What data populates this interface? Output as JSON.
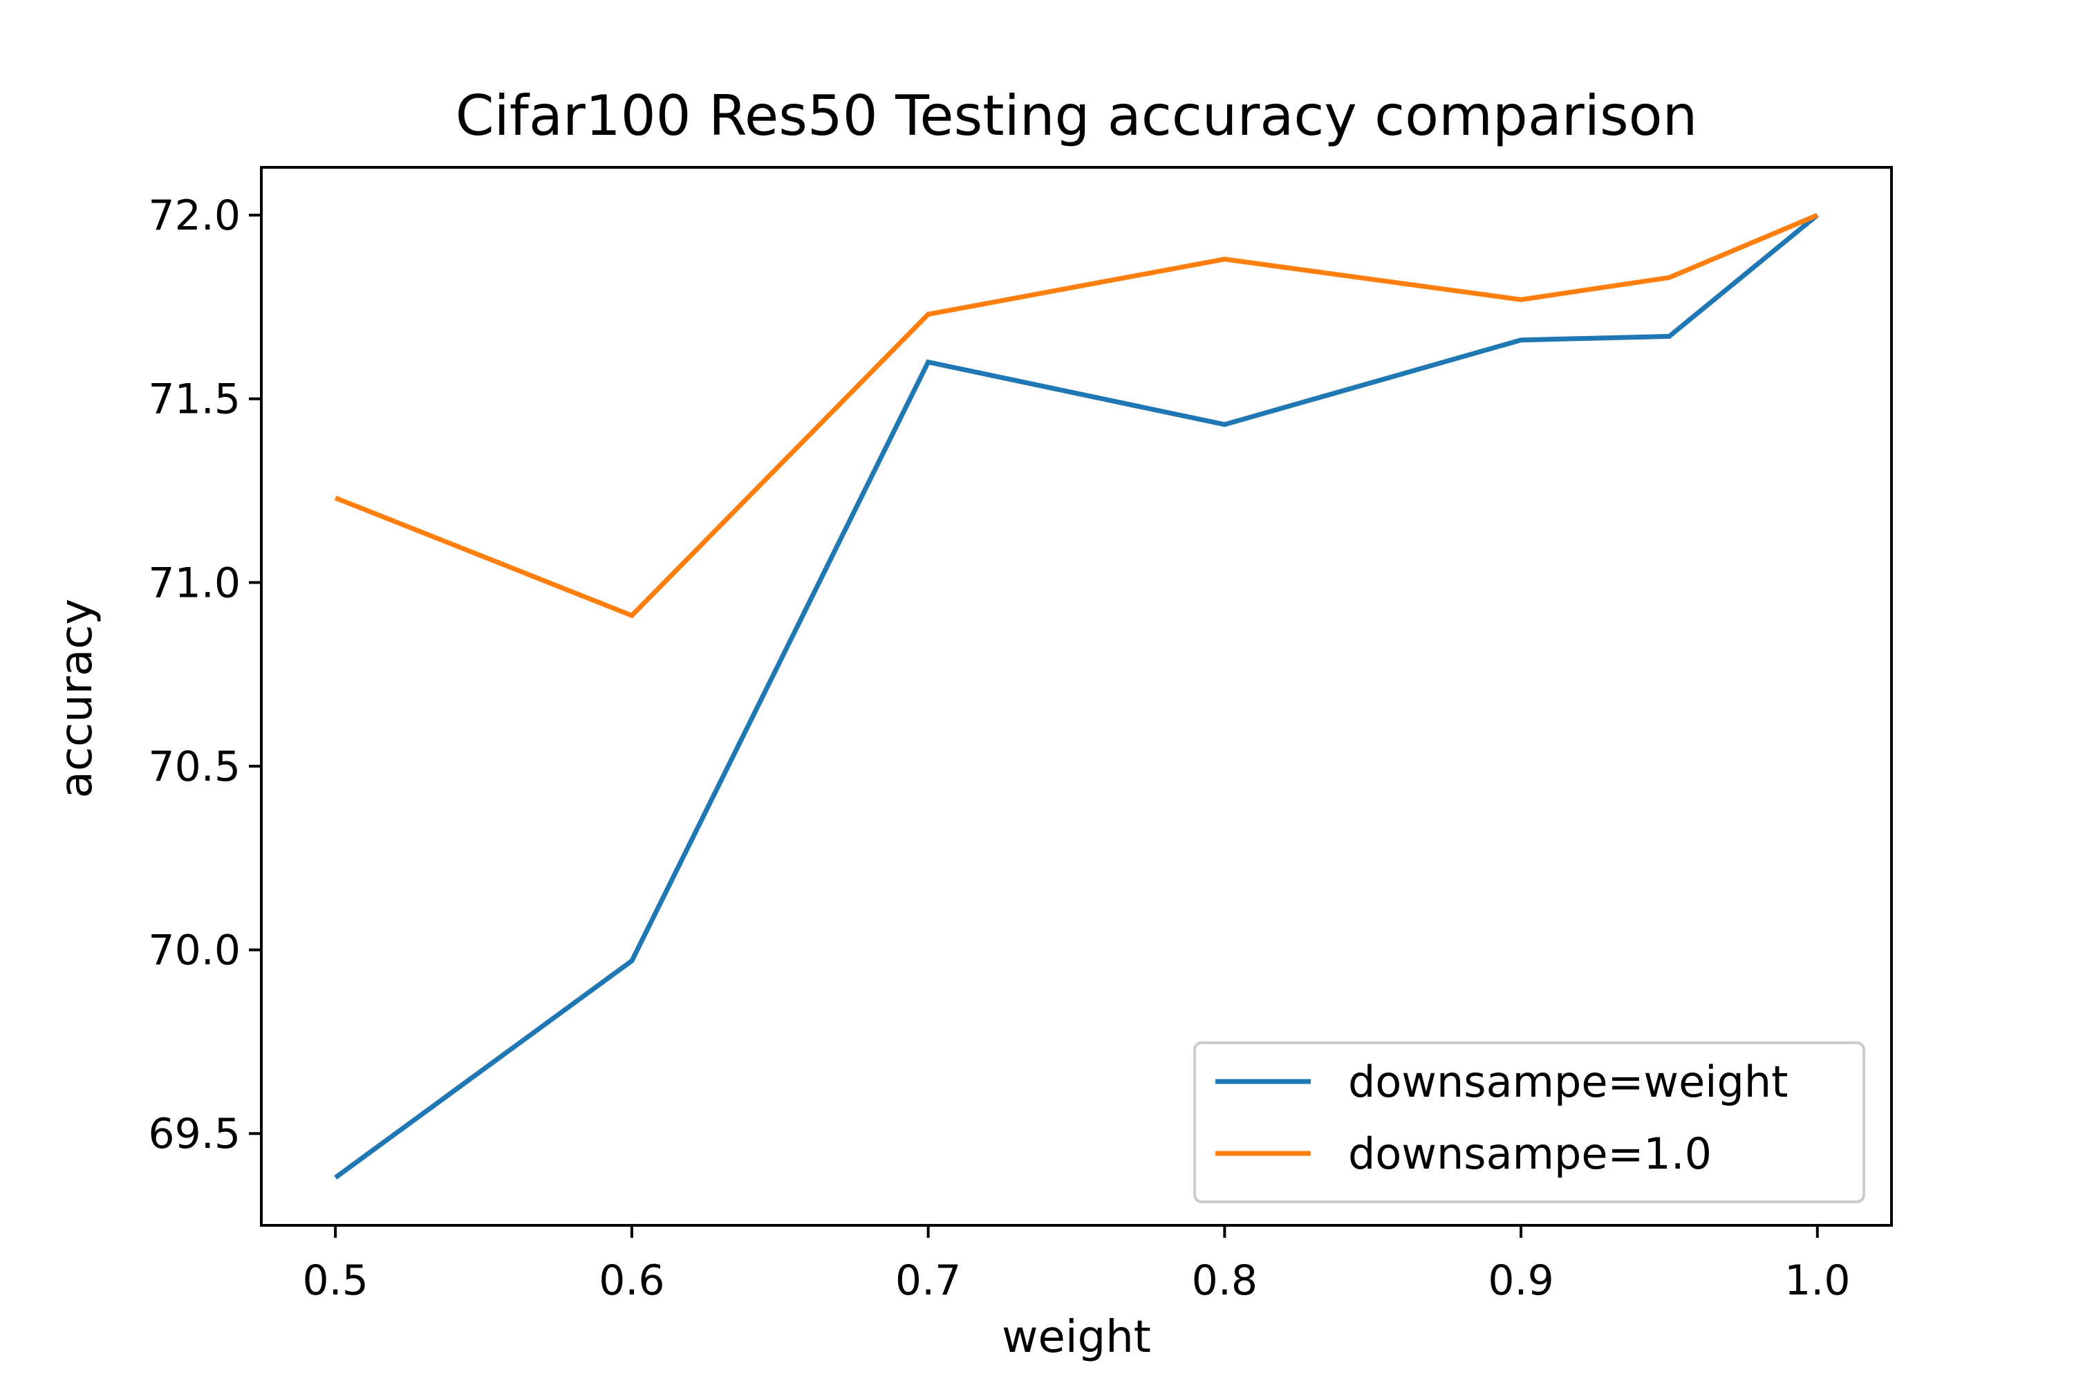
{
  "chart_data": {
    "type": "line",
    "title": "Cifar100 Res50 Testing accuracy comparison",
    "xlabel": "weight",
    "ylabel": "accuracy",
    "xlim": [
      0.475,
      1.025
    ],
    "ylim": [
      69.25,
      72.13
    ],
    "xticks": [
      0.5,
      0.6,
      0.7,
      0.8,
      0.9,
      1.0
    ],
    "xtick_labels": [
      "0.5",
      "0.6",
      "0.7",
      "0.8",
      "0.9",
      "1.0"
    ],
    "yticks": [
      69.5,
      70.0,
      70.5,
      71.0,
      71.5,
      72.0
    ],
    "ytick_labels": [
      "69.5",
      "70.0",
      "70.5",
      "71.0",
      "71.5",
      "72.0"
    ],
    "grid": false,
    "legend_position": "lower-right",
    "series": [
      {
        "name": "downsampe=weight",
        "color": "#1f77b4",
        "x": [
          0.5,
          0.6,
          0.7,
          0.8,
          0.9,
          0.95,
          1.0
        ],
        "y": [
          69.38,
          69.97,
          71.6,
          71.43,
          71.66,
          71.67,
          72.0
        ]
      },
      {
        "name": "downsampe=1.0",
        "color": "#ff7f0e",
        "x": [
          0.5,
          0.6,
          0.7,
          0.8,
          0.9,
          0.95,
          1.0
        ],
        "y": [
          71.23,
          70.91,
          71.73,
          71.88,
          71.77,
          71.83,
          72.0
        ]
      }
    ]
  }
}
